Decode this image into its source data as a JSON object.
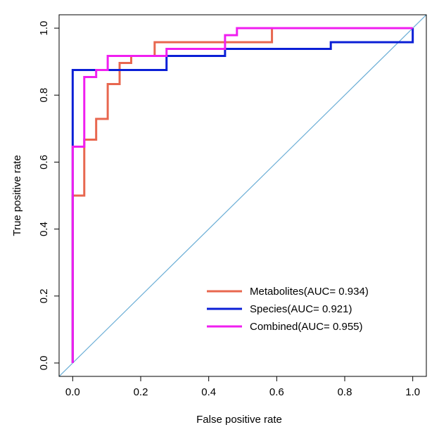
{
  "chart_data": {
    "type": "line",
    "xlabel": "False positive rate",
    "ylabel": "True positive rate",
    "xlim": [
      -0.04,
      1.04
    ],
    "ylim": [
      -0.04,
      1.04
    ],
    "xticks": [
      "0.0",
      "0.2",
      "0.4",
      "0.6",
      "0.8",
      "1.0"
    ],
    "yticks": [
      "0.0",
      "0.2",
      "0.4",
      "0.6",
      "0.8",
      "1.0"
    ],
    "grid": false,
    "legend_position": "bottom-right",
    "reference_line": {
      "x": [
        0,
        1
      ],
      "y": [
        0,
        1
      ],
      "color": "#6baed6"
    },
    "series": [
      {
        "name": "Metabolites(AUC= 0.934)",
        "color": "#e8674f",
        "x": [
          0.0,
          0.0,
          0.034,
          0.034,
          0.069,
          0.069,
          0.103,
          0.103,
          0.138,
          0.138,
          0.172,
          0.172,
          0.241,
          0.241,
          0.586,
          0.586,
          1.0
        ],
        "y": [
          0.0,
          0.5,
          0.5,
          0.667,
          0.667,
          0.729,
          0.729,
          0.833,
          0.833,
          0.896,
          0.896,
          0.917,
          0.917,
          0.958,
          0.958,
          1.0,
          1.0
        ]
      },
      {
        "name": "Species(AUC= 0.921)",
        "color": "#0b1fd6",
        "x": [
          0.0,
          0.0,
          0.0,
          0.276,
          0.276,
          0.448,
          0.448,
          0.759,
          0.759,
          1.0,
          1.0
        ],
        "y": [
          0.0,
          0.646,
          0.875,
          0.875,
          0.917,
          0.917,
          0.938,
          0.938,
          0.958,
          0.958,
          1.0
        ]
      },
      {
        "name": "Combined(AUC= 0.955)",
        "color": "#f01ef0",
        "x": [
          0.0,
          0.0,
          0.034,
          0.034,
          0.069,
          0.069,
          0.103,
          0.103,
          0.276,
          0.276,
          0.448,
          0.448,
          0.483,
          0.483,
          1.0
        ],
        "y": [
          0.0,
          0.646,
          0.646,
          0.854,
          0.854,
          0.875,
          0.875,
          0.917,
          0.917,
          0.938,
          0.938,
          0.979,
          0.979,
          1.0,
          1.0
        ]
      }
    ]
  }
}
